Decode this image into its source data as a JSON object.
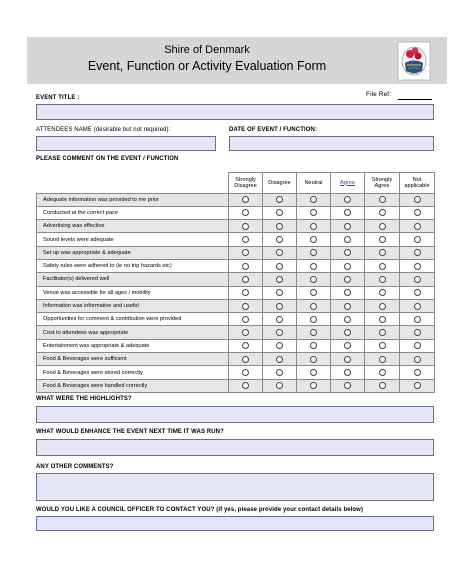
{
  "header": {
    "organization": "Shire of Denmark",
    "title": "Event, Function or Activity Evaluation Form",
    "logo_icon": "crest-icon"
  },
  "file_ref": {
    "label": "File Ref:"
  },
  "event_title": {
    "label": "EVENT TITLE :",
    "value": ""
  },
  "attendees": {
    "label": "ATTENDEES NAME (desirable but not required):",
    "value": ""
  },
  "date": {
    "label": "DATE OF EVENT / FUNCTION:",
    "value": ""
  },
  "comment_prompt": "PLEASE COMMENT ON THE EVENT / FUNCTION",
  "rating": {
    "columns": [
      "Strongly Disagree",
      "Disagree",
      "Neutral",
      "Agree",
      "Strongly Agree",
      "Not applicable"
    ],
    "questions": [
      "Adequate information was provided to me prior",
      "Conducted at the correct pace",
      "Advertising was effective",
      "Sound levels were adequate",
      "Set up was appropriate & adequate",
      "Safety rules were adhered to (ie no trip hazards etc)",
      "Facilitator(s) delivered well",
      "Venue was accessible for all ages / mobility",
      "Information was informative and useful",
      "Opportunities for comment & contribution were provided",
      "Cost to attendees was appropriate",
      "Entertainment was appropriate & adequate",
      "Food & Beverages were sufficient",
      "Food & Beverages were stored correctly",
      "Food & Beverages were handled correctly"
    ]
  },
  "highlights": {
    "label": "WHAT WERE THE HIGHLIGHTS?",
    "value": ""
  },
  "enhance": {
    "label": "WHAT WOULD ENHANCE THE EVENT NEXT TIME IT WAS RUN?",
    "value": ""
  },
  "other": {
    "label": "ANY OTHER COMMENTS?",
    "value": ""
  },
  "contact": {
    "label": "WOULD YOU LIKE A COUNCIL OFFICER TO CONTACT YOU?  (if yes, please provide your contact details below)",
    "value": ""
  }
}
